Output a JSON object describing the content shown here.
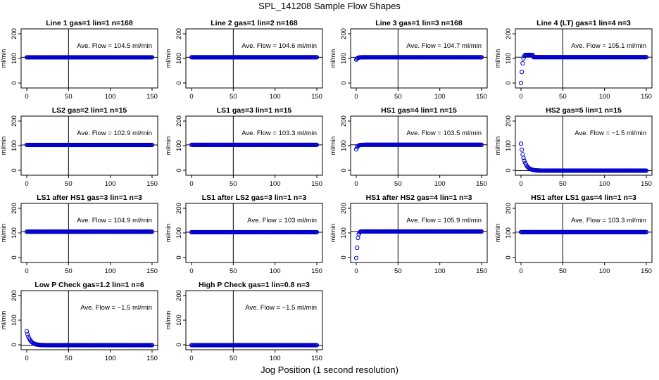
{
  "title": "SPL_141208  Sample Flow Shapes",
  "xlabel": "Jog Position (1 second resolution)",
  "ylabel": "ml/min",
  "x_ticks": [
    0,
    50,
    100,
    150
  ],
  "y_ticks": [
    0,
    100,
    200
  ],
  "y_tick_labels": [
    "0",
    "100",
    "200"
  ],
  "x_tick_labels": [
    "0",
    "50",
    "100",
    "150"
  ],
  "colors": {
    "points": "#0000cc",
    "axes": "#000000",
    "background": "#ffffff"
  },
  "chart_data": [
    {
      "type": "scatter",
      "title": "Line 1 gas=1 lin=1 n=168",
      "annotation": "Ave. Flow = 104.5  ml/min",
      "vline": 50,
      "hline": 104.5,
      "xlim": [
        0,
        150
      ],
      "ylim": [
        -20,
        220
      ],
      "shape": "flat",
      "level": 104.5
    },
    {
      "type": "scatter",
      "title": "Line 2 gas=1 lin=2 n=168",
      "annotation": "Ave. Flow = 104.6  ml/min",
      "vline": 50,
      "hline": 104.6,
      "xlim": [
        0,
        150
      ],
      "ylim": [
        -20,
        220
      ],
      "shape": "flat",
      "level": 104.6
    },
    {
      "type": "scatter",
      "title": "Line 3 gas=1 lin=3 n=168",
      "annotation": "Ave. Flow = 104.7  ml/min",
      "vline": 50,
      "hline": 104.7,
      "xlim": [
        0,
        150
      ],
      "ylim": [
        -20,
        220
      ],
      "shape": "ramp",
      "level": 104.7,
      "start": 95
    },
    {
      "type": "scatter",
      "title": "Line 4 (LT) gas=1 lin=4 n=3",
      "annotation": "Ave. Flow = 105.1  ml/min",
      "vline": 50,
      "hline": 105.1,
      "xlim": [
        0,
        150
      ],
      "ylim": [
        -20,
        220
      ],
      "shape": "rise_overshoot",
      "level": 105.1
    },
    {
      "type": "scatter",
      "title": "LS2 gas=2 lin=1 n=15",
      "annotation": "Ave. Flow = 102.9  ml/min",
      "vline": 50,
      "hline": 102.9,
      "xlim": [
        0,
        150
      ],
      "ylim": [
        -20,
        220
      ],
      "shape": "flat",
      "level": 102.9
    },
    {
      "type": "scatter",
      "title": "LS1 gas=3 lin=1 n=15",
      "annotation": "Ave. Flow = 103.3  ml/min",
      "vline": 50,
      "hline": 103.3,
      "xlim": [
        0,
        150
      ],
      "ylim": [
        -20,
        220
      ],
      "shape": "flat",
      "level": 103.3
    },
    {
      "type": "scatter",
      "title": "HS1 gas=4 lin=1 n=15",
      "annotation": "Ave. Flow = 103.5  ml/min",
      "vline": 50,
      "hline": 103.5,
      "xlim": [
        0,
        150
      ],
      "ylim": [
        -20,
        220
      ],
      "shape": "ramp",
      "level": 103.5,
      "start": 85
    },
    {
      "type": "scatter",
      "title": "HS2 gas=5 lin=1 n=15",
      "annotation": "Ave. Flow = −1.5  ml/min",
      "vline": 50,
      "hline": -1.5,
      "xlim": [
        0,
        150
      ],
      "ylim": [
        -20,
        220
      ],
      "shape": "decay",
      "level": -1.5,
      "start": 108
    },
    {
      "type": "scatter",
      "title": "LS1 after HS1 gas=3 lin=1 n=3",
      "annotation": "Ave. Flow = 104.9  ml/min",
      "vline": 50,
      "hline": 104.9,
      "xlim": [
        0,
        150
      ],
      "ylim": [
        -20,
        220
      ],
      "shape": "flat",
      "level": 104.9
    },
    {
      "type": "scatter",
      "title": "LS1 after LS2 gas=3 lin=1 n=3",
      "annotation": "Ave. Flow = 103  ml/min",
      "vline": 50,
      "hline": 103,
      "xlim": [
        0,
        150
      ],
      "ylim": [
        -20,
        220
      ],
      "shape": "flat",
      "level": 103
    },
    {
      "type": "scatter",
      "title": "HS1 after HS2 gas=4 lin=1 n=3",
      "annotation": "Ave. Flow = 105.9  ml/min",
      "vline": 50,
      "hline": 105.9,
      "xlim": [
        0,
        150
      ],
      "ylim": [
        -20,
        220
      ],
      "shape": "rise",
      "level": 105.9
    },
    {
      "type": "scatter",
      "title": "HS1 after LS1 gas=4 lin=1 n=3",
      "annotation": "Ave. Flow = 103.3  ml/min",
      "vline": 50,
      "hline": 103.3,
      "xlim": [
        0,
        150
      ],
      "ylim": [
        -20,
        220
      ],
      "shape": "flat",
      "level": 103.3
    },
    {
      "type": "scatter",
      "title": "Low P Check gas=1.2 lin=1 n=6",
      "annotation": "Ave. Flow = −1.5  ml/min",
      "vline": 50,
      "hline": -1.5,
      "xlim": [
        0,
        150
      ],
      "ylim": [
        -20,
        220
      ],
      "shape": "decay",
      "level": -1.5,
      "start": 55
    },
    {
      "type": "scatter",
      "title": "High P Check gas=1 lin=0.8 n=3",
      "annotation": "Ave. Flow = −1.5  ml/min",
      "vline": 50,
      "hline": -1.5,
      "xlim": [
        0,
        150
      ],
      "ylim": [
        -20,
        220
      ],
      "shape": "flat",
      "level": -1.5
    }
  ]
}
